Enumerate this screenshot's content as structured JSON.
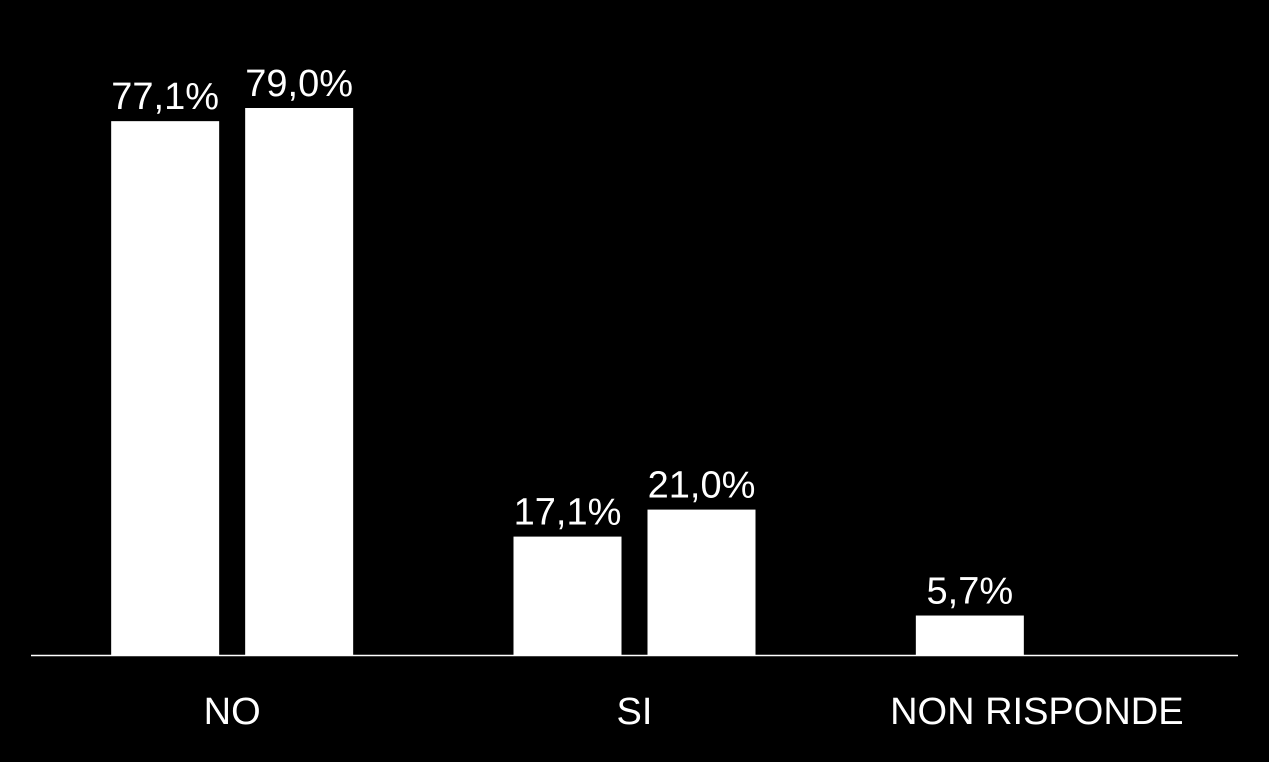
{
  "chart_data": {
    "type": "bar",
    "categories": [
      "NO",
      "SI",
      "NON RISPONDE"
    ],
    "series": [
      {
        "color": "#ffffff",
        "values": [
          77.1,
          17.1,
          5.7
        ],
        "value_labels": [
          "77,1%",
          "17,1%",
          "5,7%"
        ]
      },
      {
        "color": "#ffffff",
        "values": [
          79.0,
          21.0,
          null
        ],
        "value_labels": [
          "79,0%",
          "21,0%",
          null
        ]
      }
    ]
  }
}
